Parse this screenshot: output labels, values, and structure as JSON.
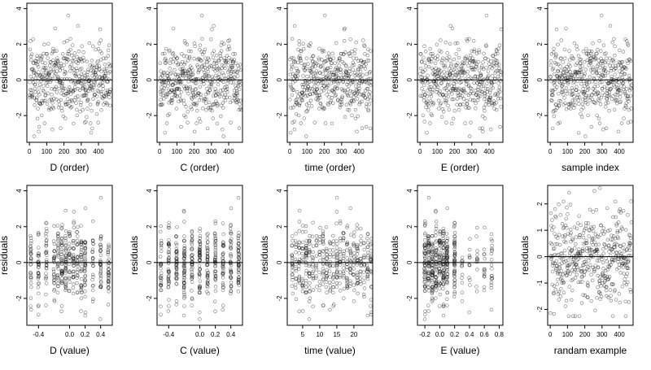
{
  "chart_data": [
    {
      "type": "scatter",
      "xlabel": "D (order)",
      "ylabel": "residuals",
      "xlim": [
        -15,
        480
      ],
      "ylim": [
        -3.5,
        4.3
      ],
      "xticks": [
        0,
        100,
        200,
        300,
        400
      ],
      "xtick_labels": [
        "0",
        "100",
        "200",
        "300",
        "400"
      ],
      "yticks": [
        -2,
        0,
        2,
        4
      ],
      "ytick_labels": [
        "-2",
        "0",
        "2",
        "4"
      ],
      "reference_line": 0,
      "x_kind": "index",
      "x": [],
      "y": []
    },
    {
      "type": "scatter",
      "xlabel": "C (order)",
      "ylabel": "residuals",
      "xlim": [
        -15,
        480
      ],
      "ylim": [
        -3.5,
        4.3
      ],
      "xticks": [
        0,
        100,
        200,
        300,
        400
      ],
      "xtick_labels": [
        "0",
        "100",
        "200",
        "300",
        "400"
      ],
      "yticks": [
        -2,
        0,
        2,
        4
      ],
      "ytick_labels": [
        "-2",
        "0",
        "2",
        "4"
      ],
      "reference_line": 0,
      "x_kind": "index",
      "x": [],
      "y": []
    },
    {
      "type": "scatter",
      "xlabel": "time (order)",
      "ylabel": "residuals",
      "xlim": [
        -15,
        480
      ],
      "ylim": [
        -3.5,
        4.3
      ],
      "xticks": [
        0,
        100,
        200,
        300,
        400
      ],
      "xtick_labels": [
        "0",
        "100",
        "200",
        "300",
        "400"
      ],
      "yticks": [
        -2,
        0,
        2,
        4
      ],
      "ytick_labels": [
        "-2",
        "0",
        "2",
        "4"
      ],
      "reference_line": 0,
      "x_kind": "index",
      "x": [],
      "y": []
    },
    {
      "type": "scatter",
      "xlabel": "E (order)",
      "ylabel": "residuals",
      "xlim": [
        -15,
        480
      ],
      "ylim": [
        -3.5,
        4.3
      ],
      "xticks": [
        0,
        100,
        200,
        300,
        400
      ],
      "xtick_labels": [
        "0",
        "100",
        "200",
        "300",
        "400"
      ],
      "yticks": [
        -2,
        0,
        2,
        4
      ],
      "ytick_labels": [
        "-2",
        "0",
        "2",
        "4"
      ],
      "reference_line": 0,
      "x_kind": "index",
      "x": [],
      "y": []
    },
    {
      "type": "scatter",
      "xlabel": "sample index",
      "ylabel": "residuals",
      "xlim": [
        -15,
        480
      ],
      "ylim": [
        -3.5,
        4.3
      ],
      "xticks": [
        0,
        100,
        200,
        300,
        400
      ],
      "xtick_labels": [
        "0",
        "100",
        "200",
        "300",
        "400"
      ],
      "yticks": [
        -2,
        0,
        2,
        4
      ],
      "ytick_labels": [
        "-2",
        "0",
        "2",
        "4"
      ],
      "reference_line": 0,
      "x_kind": "index",
      "x": [],
      "y": []
    },
    {
      "type": "scatter",
      "xlabel": "D (value)",
      "ylabel": "residuals",
      "xlim": [
        -0.55,
        0.55
      ],
      "ylim": [
        -3.5,
        4.3
      ],
      "xticks": [
        -0.4,
        0,
        0.2,
        0.4
      ],
      "xtick_labels": [
        "-0.4",
        "0.0",
        "0.2",
        "0.4"
      ],
      "yticks": [
        -2,
        0,
        2,
        4
      ],
      "ytick_labels": [
        "-2",
        "0",
        "2",
        "4"
      ],
      "reference_line": 0,
      "x_kind": "levels",
      "levels": [
        -0.5,
        -0.4,
        -0.3,
        -0.2,
        -0.15,
        -0.1,
        -0.05,
        0,
        0.05,
        0.1,
        0.15,
        0.2,
        0.3,
        0.4,
        0.5
      ],
      "x": [],
      "y": []
    },
    {
      "type": "scatter",
      "xlabel": "C (value)",
      "ylabel": "residuals",
      "xlim": [
        -0.55,
        0.55
      ],
      "ylim": [
        -3.5,
        4.3
      ],
      "xticks": [
        -0.4,
        0,
        0.2,
        0.4
      ],
      "xtick_labels": [
        "-0.4",
        "0.0",
        "0.2",
        "0.4"
      ],
      "yticks": [
        -2,
        0,
        2,
        4
      ],
      "ytick_labels": [
        "-2",
        "0",
        "2",
        "4"
      ],
      "reference_line": 0,
      "x_kind": "levels",
      "levels": [
        -0.5,
        -0.4,
        -0.3,
        -0.2,
        -0.1,
        0,
        0.1,
        0.2,
        0.3,
        0.4,
        0.5
      ],
      "x": [],
      "y": []
    },
    {
      "type": "scatter",
      "xlabel": "time (value)",
      "ylabel": "residuals",
      "xlim": [
        0.5,
        25.5
      ],
      "ylim": [
        -3.5,
        4.3
      ],
      "xticks": [
        5,
        10,
        15,
        20
      ],
      "xtick_labels": [
        "5",
        "10",
        "15",
        "20"
      ],
      "yticks": [
        -2,
        0,
        2,
        4
      ],
      "ytick_labels": [
        "-2",
        "0",
        "2",
        "4"
      ],
      "reference_line": 0,
      "x_kind": "levels",
      "levels": [
        2,
        3,
        4,
        5,
        6,
        7,
        8,
        9,
        10,
        11,
        12,
        13,
        14,
        15,
        16,
        17,
        18,
        19,
        20,
        21,
        22,
        23,
        24,
        25
      ],
      "x": [],
      "y": []
    },
    {
      "type": "scatter",
      "xlabel": "E (value)",
      "ylabel": "residuals",
      "xlim": [
        -0.3,
        0.85
      ],
      "ylim": [
        -3.5,
        4.3
      ],
      "xticks": [
        -0.2,
        0,
        0.2,
        0.4,
        0.6,
        0.8
      ],
      "xtick_labels": [
        "-0.2",
        "0.0",
        "0.2",
        "0.4",
        "0.6",
        "0.8"
      ],
      "yticks": [
        -2,
        0,
        2,
        4
      ],
      "ytick_labels": [
        "-2",
        "0",
        "2",
        "4"
      ],
      "reference_line": 0,
      "x_kind": "levels",
      "levels": [
        -0.2,
        -0.15,
        -0.1,
        -0.05,
        0,
        0.05,
        0.1,
        0.2,
        0.3,
        0.4,
        0.5,
        0.6,
        0.7
      ],
      "x": [],
      "y": []
    },
    {
      "type": "scatter",
      "xlabel": "randam example",
      "ylabel": "residuals",
      "xlim": [
        -15,
        480
      ],
      "ylim": [
        -2.6,
        2.7
      ],
      "xticks": [
        0,
        100,
        200,
        300,
        400
      ],
      "xtick_labels": [
        "0",
        "100",
        "200",
        "300",
        "400"
      ],
      "yticks": [
        -2,
        -1,
        0,
        1,
        2
      ],
      "ytick_labels": [
        "-2",
        "-1",
        "0",
        "1",
        "2"
      ],
      "reference_line": 0,
      "x_kind": "index",
      "x": [],
      "y": []
    }
  ]
}
